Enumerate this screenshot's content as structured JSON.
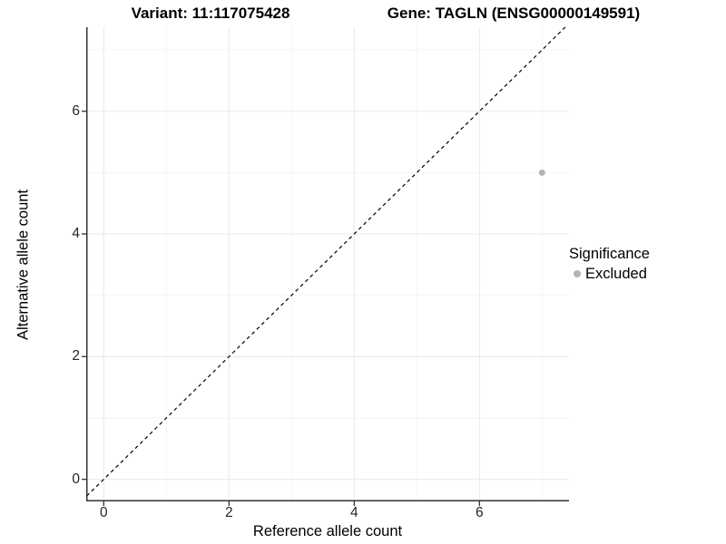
{
  "figure": {
    "title_variant": "Variant: 11:117075428",
    "title_gene": "Gene: TAGLN (ENSG00000149591)"
  },
  "axes": {
    "x_label": "Reference allele count",
    "y_label": "Alternative allele count"
  },
  "legend": {
    "title": "Significance",
    "items": [
      {
        "label": "Excluded",
        "color": "#b4b4b4"
      }
    ]
  },
  "chart_data": {
    "type": "scatter",
    "title": "Variant: 11:117075428 | Gene: TAGLN (ENSG00000149591)",
    "xlabel": "Reference allele count",
    "ylabel": "Alternative allele count",
    "xlim": [
      -0.28,
      7.43
    ],
    "ylim": [
      -0.36,
      7.37
    ],
    "x_ticks": [
      0,
      2,
      4,
      6
    ],
    "y_ticks": [
      0,
      2,
      4,
      6
    ],
    "x_minor_gridlines": [
      1,
      3,
      5,
      7
    ],
    "y_minor_gridlines": [
      1,
      3,
      5,
      7
    ],
    "grid": true,
    "legend_position": "right",
    "series": [
      {
        "name": "Excluded",
        "color": "#b4b4b4",
        "points": [
          {
            "x": 7,
            "y": 5
          }
        ]
      }
    ],
    "reference_line": {
      "type": "identity",
      "equation": "y = x",
      "style": "dashed",
      "color": "#000000"
    }
  },
  "style": {
    "grid_major_color": "#e9e9e9",
    "grid_minor_color": "#f4f4f4",
    "axis_color": "#333333",
    "tick_color": "#333333",
    "tick_label_color": "#262626",
    "point_color": "#b4b4b4",
    "point_radius": 3.5
  }
}
